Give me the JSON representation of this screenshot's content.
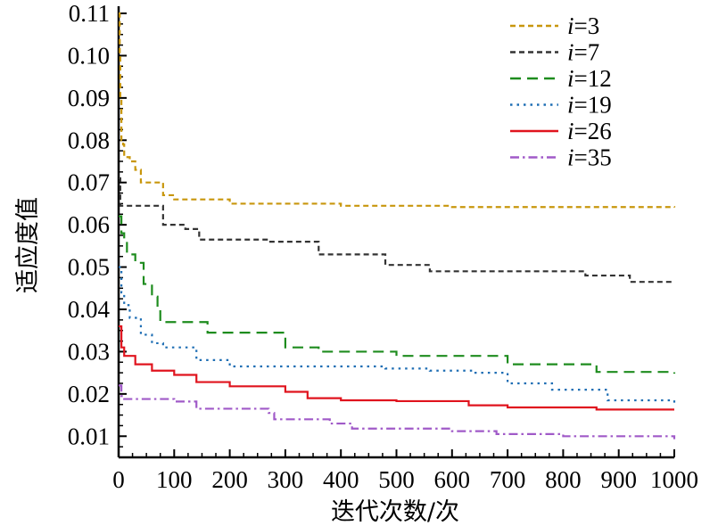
{
  "chart_data": {
    "type": "line",
    "title": "",
    "xlabel": "迭代次数/次",
    "ylabel": "适应度值",
    "xlim": [
      0,
      1000
    ],
    "ylim": [
      0.005,
      0.11
    ],
    "xticks": [
      0,
      100,
      200,
      300,
      400,
      500,
      600,
      700,
      800,
      900,
      1000
    ],
    "xtick_labels": [
      "0",
      "100",
      "200",
      "300",
      "400",
      "500",
      "600",
      "700",
      "800",
      "900",
      "1000"
    ],
    "yticks": [
      0.01,
      0.02,
      0.03,
      0.04,
      0.05,
      0.06,
      0.07,
      0.08,
      0.09,
      0.1,
      0.11
    ],
    "ytick_labels": [
      "0.01",
      "0.02",
      "0.03",
      "0.04",
      "0.05",
      "0.06",
      "0.07",
      "0.08",
      "0.09",
      "0.10",
      "0.11"
    ],
    "grid": false,
    "legend_position": "top-right",
    "series": [
      {
        "name": "i=3",
        "color": "#C8960C",
        "dash": "short-dash",
        "points": [
          [
            0,
            0.11
          ],
          [
            2,
            0.1
          ],
          [
            3,
            0.09
          ],
          [
            5,
            0.08
          ],
          [
            8,
            0.079
          ],
          [
            10,
            0.076
          ],
          [
            20,
            0.075
          ],
          [
            30,
            0.073
          ],
          [
            40,
            0.07
          ],
          [
            80,
            0.07
          ],
          [
            80,
            0.067
          ],
          [
            100,
            0.066
          ],
          [
            200,
            0.065
          ],
          [
            400,
            0.0645
          ],
          [
            600,
            0.0642
          ],
          [
            1000,
            0.0641
          ]
        ]
      },
      {
        "name": "i=7",
        "color": "#333333",
        "dash": "short-dash",
        "points": [
          [
            0,
            0.071
          ],
          [
            3,
            0.0645
          ],
          [
            80,
            0.0645
          ],
          [
            80,
            0.06
          ],
          [
            120,
            0.06
          ],
          [
            120,
            0.059
          ],
          [
            145,
            0.059
          ],
          [
            145,
            0.0565
          ],
          [
            270,
            0.0565
          ],
          [
            270,
            0.056
          ],
          [
            360,
            0.056
          ],
          [
            360,
            0.053
          ],
          [
            480,
            0.053
          ],
          [
            480,
            0.0505
          ],
          [
            560,
            0.0505
          ],
          [
            560,
            0.049
          ],
          [
            840,
            0.049
          ],
          [
            840,
            0.048
          ],
          [
            920,
            0.048
          ],
          [
            920,
            0.0465
          ],
          [
            1000,
            0.0465
          ]
        ]
      },
      {
        "name": "i=12",
        "color": "#1E8C1E",
        "dash": "long-dash",
        "points": [
          [
            0,
            0.062
          ],
          [
            5,
            0.058
          ],
          [
            10,
            0.056
          ],
          [
            15,
            0.053
          ],
          [
            30,
            0.051
          ],
          [
            45,
            0.046
          ],
          [
            60,
            0.043
          ],
          [
            70,
            0.04
          ],
          [
            75,
            0.037
          ],
          [
            160,
            0.037
          ],
          [
            160,
            0.0345
          ],
          [
            300,
            0.0345
          ],
          [
            300,
            0.031
          ],
          [
            360,
            0.03
          ],
          [
            500,
            0.029
          ],
          [
            700,
            0.027
          ],
          [
            860,
            0.0252
          ],
          [
            1000,
            0.0248
          ]
        ]
      },
      {
        "name": "i=19",
        "color": "#1E6EB4",
        "dash": "dot",
        "points": [
          [
            0,
            0.05
          ],
          [
            5,
            0.044
          ],
          [
            10,
            0.041
          ],
          [
            20,
            0.038
          ],
          [
            40,
            0.034
          ],
          [
            60,
            0.032
          ],
          [
            80,
            0.031
          ],
          [
            140,
            0.028
          ],
          [
            200,
            0.0265
          ],
          [
            480,
            0.026
          ],
          [
            560,
            0.0255
          ],
          [
            640,
            0.025
          ],
          [
            700,
            0.0225
          ],
          [
            780,
            0.021
          ],
          [
            880,
            0.0185
          ],
          [
            1000,
            0.017
          ]
        ]
      },
      {
        "name": "i=26",
        "color": "#E0141E",
        "dash": "solid",
        "points": [
          [
            0,
            0.036
          ],
          [
            5,
            0.031
          ],
          [
            10,
            0.029
          ],
          [
            30,
            0.027
          ],
          [
            60,
            0.0255
          ],
          [
            100,
            0.0245
          ],
          [
            140,
            0.0228
          ],
          [
            200,
            0.0218
          ],
          [
            270,
            0.0218
          ],
          [
            300,
            0.0205
          ],
          [
            340,
            0.019
          ],
          [
            400,
            0.0185
          ],
          [
            500,
            0.0183
          ],
          [
            630,
            0.0173
          ],
          [
            700,
            0.0168
          ],
          [
            860,
            0.0163
          ],
          [
            1000,
            0.0163
          ]
        ]
      },
      {
        "name": "i=35",
        "color": "#A05AC8",
        "dash": "dash-dot",
        "points": [
          [
            0,
            0.022
          ],
          [
            5,
            0.0195
          ],
          [
            10,
            0.0188
          ],
          [
            100,
            0.0182
          ],
          [
            140,
            0.0165
          ],
          [
            270,
            0.0155
          ],
          [
            280,
            0.014
          ],
          [
            380,
            0.013
          ],
          [
            420,
            0.0118
          ],
          [
            600,
            0.0112
          ],
          [
            680,
            0.0105
          ],
          [
            800,
            0.01
          ],
          [
            1000,
            0.0093
          ]
        ]
      }
    ]
  }
}
